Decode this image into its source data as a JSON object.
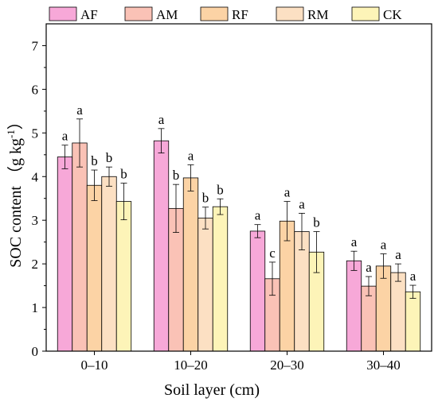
{
  "chart_data": {
    "type": "bar",
    "title": "",
    "xlabel": "Soil layer (cm)",
    "ylabel_main": "SOC content （g kg",
    "ylabel_sup": "-1",
    "ylabel_tail": "）",
    "ylim": [
      0,
      7.5
    ],
    "yticks": [
      "0",
      "1",
      "2",
      "3",
      "4",
      "5",
      "6",
      "7"
    ],
    "categories": [
      "0–10",
      "10–20",
      "20–30",
      "30–40"
    ],
    "legend_position": "top",
    "grid": false,
    "series": [
      {
        "name": "AF",
        "color": "#f7a8d8",
        "values": [
          4.45,
          4.82,
          2.75,
          2.07
        ],
        "errors": [
          0.27,
          0.28,
          0.15,
          0.22
        ],
        "letters": [
          "a",
          "a",
          "a",
          "a"
        ]
      },
      {
        "name": "AM",
        "color": "#fac2b6",
        "values": [
          4.77,
          3.27,
          1.66,
          1.49
        ],
        "errors": [
          0.55,
          0.55,
          0.38,
          0.22
        ],
        "letters": [
          "a",
          "b",
          "c",
          "a"
        ]
      },
      {
        "name": "RF",
        "color": "#fcd3a5",
        "values": [
          3.8,
          3.97,
          2.98,
          1.95
        ],
        "errors": [
          0.35,
          0.3,
          0.45,
          0.28
        ],
        "letters": [
          "b",
          "a",
          "a",
          "a"
        ]
      },
      {
        "name": "RM",
        "color": "#fce0c3",
        "values": [
          4.0,
          3.05,
          2.74,
          1.8
        ],
        "errors": [
          0.22,
          0.25,
          0.42,
          0.2
        ],
        "letters": [
          "b",
          "b",
          "a",
          "a"
        ]
      },
      {
        "name": "CK",
        "color": "#fdf4b8",
        "values": [
          3.43,
          3.31,
          2.27,
          1.36
        ],
        "errors": [
          0.42,
          0.18,
          0.47,
          0.15
        ],
        "letters": [
          "b",
          "b",
          "b",
          "a"
        ]
      }
    ]
  }
}
